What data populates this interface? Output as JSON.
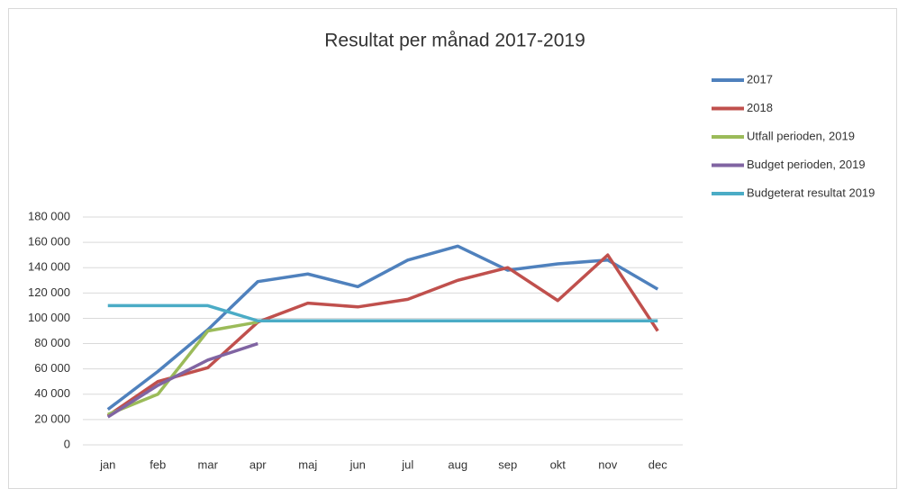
{
  "chart_data": {
    "type": "line",
    "title": "Resultat per månad 2017-2019",
    "categories": [
      "jan",
      "feb",
      "mar",
      "apr",
      "maj",
      "jun",
      "jul",
      "aug",
      "sep",
      "okt",
      "nov",
      "dec"
    ],
    "series": [
      {
        "name": "2017",
        "color": "#4f81bd",
        "values": [
          28000,
          58000,
          91000,
          129000,
          135000,
          125000,
          146000,
          157000,
          138000,
          143000,
          146000,
          123000
        ]
      },
      {
        "name": "2018",
        "color": "#c0504d",
        "values": [
          23000,
          50000,
          61000,
          97000,
          112000,
          109000,
          115000,
          130000,
          140000,
          114000,
          150000,
          90000
        ]
      },
      {
        "name": "Utfall perioden, 2019",
        "color": "#9bbb59",
        "values": [
          24000,
          40000,
          90000,
          97000,
          null,
          null,
          null,
          null,
          null,
          null,
          null,
          null
        ]
      },
      {
        "name": "Budget perioden, 2019",
        "color": "#8064a2",
        "values": [
          22000,
          47000,
          67000,
          80000,
          null,
          null,
          null,
          null,
          null,
          null,
          null,
          null
        ]
      },
      {
        "name": "Budgeterat resultat 2019",
        "color": "#4bacc6",
        "values": [
          110000,
          110000,
          110000,
          98000,
          98000,
          98000,
          98000,
          98000,
          98000,
          98000,
          98000,
          98000
        ]
      }
    ],
    "ylim": [
      0,
      180000
    ],
    "yticks": [
      0,
      {
        "value": 20000,
        "label": "20 000"
      },
      {
        "value": 40000,
        "label": "40 000"
      },
      {
        "value": 60000,
        "label": "60 000"
      },
      {
        "value": 80000,
        "label": "80 000"
      },
      {
        "value": 100000,
        "label": "100 000"
      },
      {
        "value": 120000,
        "label": "120 000"
      },
      {
        "value": 140000,
        "label": "140 000"
      },
      {
        "value": 160000,
        "label": "160 000"
      },
      {
        "value": 180000,
        "label": "180 000"
      }
    ],
    "grid": true,
    "legend": "right"
  }
}
